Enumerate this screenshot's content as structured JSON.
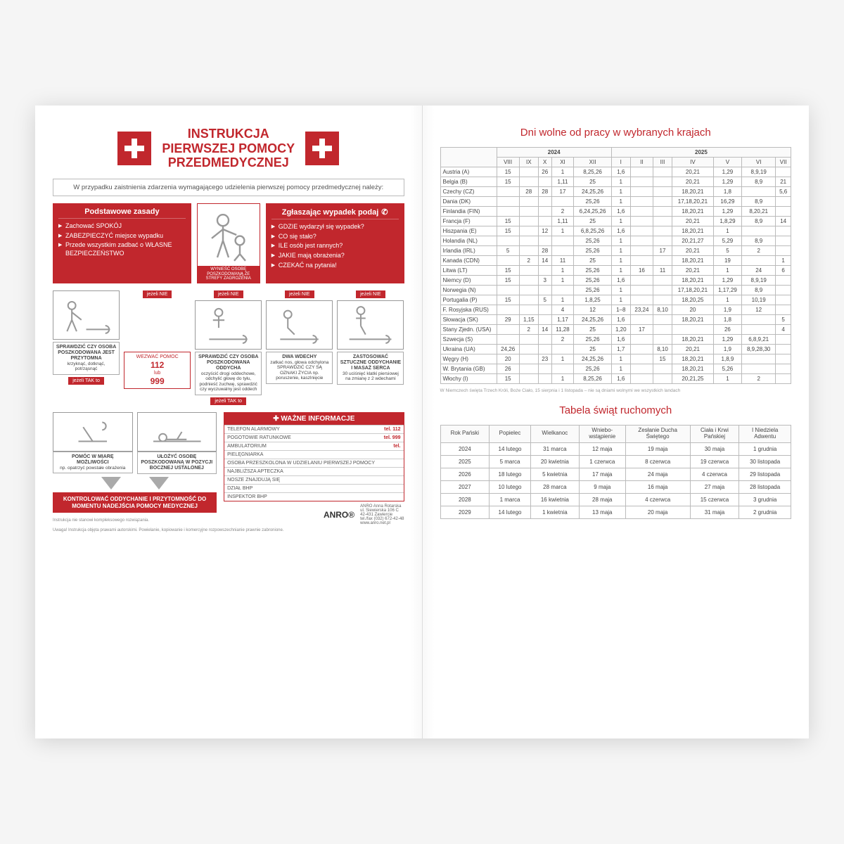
{
  "colors": {
    "red": "#c1272d",
    "grey": "#999999",
    "border": "#bbbbbb",
    "text": "#444444"
  },
  "left": {
    "title": {
      "l1": "INSTRUKCJA",
      "l2": "PIERWSZEJ POMOCY",
      "l3": "PRZEDMEDYCZNEJ"
    },
    "intro": "W przypadku zaistnienia zdarzenia wymagającego udzielenia pierwszej pomocy przedmedycznej należy:",
    "rules": {
      "hdr": "Podstawowe zasady",
      "items": [
        "Zachować SPOKÓJ",
        "ZABEZPIECZYĆ miejsce wypadku",
        "Przede wszystkim zadbać o WŁASNE BEZPIECZEŃSTWO"
      ]
    },
    "midcap": "WYNIEŚĆ OSOBĘ POSZKODOWANĄ ZE STREFY ZAGROŻENIA",
    "report": {
      "hdr": "Zgłaszając wypadek podaj",
      "items": [
        "GDZIE wydarzył się wypadek?",
        "CO się stało?",
        "ILE osób jest rannych?",
        "JAKIE mają obrażenia?",
        "CZEKAĆ na pytania!"
      ]
    },
    "flags": {
      "nie": "jeżeli NIE",
      "tak": "jeżeli TAK to"
    },
    "flow": {
      "c1": {
        "b": "SPRAWDZIĆ CZY OSOBA POSZKODOWANA JEST PRZYTOMNA",
        "t": "krzyknąć, dotknąć, potrząsnąć"
      },
      "c2": {
        "b": "SPRAWDZIĆ CZY OSOBA POSZKODOWANA ODDYCHA",
        "t": "oczyścić drogi oddechowe, odchylić głowę do tyłu, podnieść żuchwę, sprawdzić czy wyczuwalny jest oddech"
      },
      "c3": {
        "b": "DWA WDECHY",
        "t": "zatkać nos, głowa odchylona SPRAWDZIĆ CZY SĄ OZNAKI ŻYCIA np. poruszenie, kaszlnięcie"
      },
      "c4": {
        "b": "ZASTOSOWAĆ SZTUCZNE ODDYCHANIE I MASAŻ SERCA",
        "t": "30 uciśnięć klatki piersiowej na zmianę z 2 wdechami"
      }
    },
    "alarm": {
      "l1": "WEZWAĆ POMOC",
      "n1": "112",
      "mid": "lub",
      "n2": "999"
    },
    "bottom": {
      "b1": {
        "b": "POMÓC W MIARĘ MOŻLIWOŚCI",
        "t": "np. opatrzyć powstałe obrażenia"
      },
      "b2": {
        "b": "UŁOŻYĆ OSOBĘ POSZKODOWANĄ W POZYCJI BOCZNEJ USTALONEJ",
        "t": ""
      },
      "bar": "KONTROLOWAĆ ODDYCHANIE I PRZYTOMNOŚĆ DO MOMENTU NADEJŚCIA POMOCY MEDYCZNEJ"
    },
    "info": {
      "hdr": "✚  WAŻNE INFORMACJE",
      "rows": [
        [
          "TELEFON ALARMOWY",
          "tel. 112"
        ],
        [
          "POGOTOWIE RATUNKOWE",
          "tel. 999"
        ],
        [
          "AMBULATORIUM",
          "tel."
        ],
        [
          "PIELĘGNIARKA",
          ""
        ],
        [
          "OSOBA PRZESZKOLONA W UDZIELANIU PIERWSZEJ POMOCY",
          ""
        ],
        [
          "NAJBLIŻSZA APTECZKA",
          ""
        ],
        [
          "NOSZE ZNAJDUJĄ SIĘ",
          ""
        ],
        [
          "DZIAŁ BHP",
          ""
        ],
        [
          "INSPEKTOR BHP",
          ""
        ]
      ]
    },
    "anro": {
      "logo": "ANRO®",
      "addr": "ANRO Anna Rotarska\nul. Siewierska 106 C\n42-431 Zawiercie\ntel./fax (032) 672-42-48\nwww.anro.net.pl"
    },
    "foot1": "Instrukcja nie stanowi kompleksowego rozwiązania.",
    "foot2": "Uwaga! Instrukcja objęta prawami autorskimi. Powielanie, kopiowanie i komercyjne rozpowszechnianie prawnie zabronione."
  },
  "right": {
    "title1": "Dni wolne od pracy w wybranych krajach",
    "years": [
      "2024",
      "2025"
    ],
    "months": [
      "VIII",
      "IX",
      "X",
      "XI",
      "XII",
      "I",
      "II",
      "III",
      "IV",
      "V",
      "VI",
      "VII"
    ],
    "holidayRows": [
      [
        "Austria (A)",
        "15",
        "",
        "26",
        "1",
        "8,25,26",
        "1,6",
        "",
        "",
        "20,21",
        "1,29",
        "8,9,19",
        ""
      ],
      [
        "Belgia (B)",
        "15",
        "",
        "",
        "1,11",
        "25",
        "1",
        "",
        "",
        "20,21",
        "1,29",
        "8,9",
        "21"
      ],
      [
        "Czechy (CZ)",
        "",
        "28",
        "28",
        "17",
        "24,25,26",
        "1",
        "",
        "",
        "18,20,21",
        "1,8",
        "",
        "5,6"
      ],
      [
        "Dania (DK)",
        "",
        "",
        "",
        "",
        "25,26",
        "1",
        "",
        "",
        "17,18,20,21",
        "16,29",
        "8,9",
        ""
      ],
      [
        "Finlandia (FIN)",
        "",
        "",
        "",
        "2",
        "6,24,25,26",
        "1,6",
        "",
        "",
        "18,20,21",
        "1,29",
        "8,20,21",
        ""
      ],
      [
        "Francja (F)",
        "15",
        "",
        "",
        "1,11",
        "25",
        "1",
        "",
        "",
        "20,21",
        "1,8,29",
        "8,9",
        "14"
      ],
      [
        "Hiszpania (E)",
        "15",
        "",
        "12",
        "1",
        "6,8,25,26",
        "1,6",
        "",
        "",
        "18,20,21",
        "1",
        "",
        ""
      ],
      [
        "Holandia (NL)",
        "",
        "",
        "",
        "",
        "25,26",
        "1",
        "",
        "",
        "20,21,27",
        "5,29",
        "8,9",
        ""
      ],
      [
        "Irlandia (IRL)",
        "5",
        "",
        "28",
        "",
        "25,26",
        "1",
        "",
        "17",
        "20,21",
        "5",
        "2",
        ""
      ],
      [
        "Kanada (CDN)",
        "",
        "2",
        "14",
        "11",
        "25",
        "1",
        "",
        "",
        "18,20,21",
        "19",
        "",
        "1"
      ],
      [
        "Litwa (LT)",
        "15",
        "",
        "",
        "1",
        "25,26",
        "1",
        "16",
        "11",
        "20,21",
        "1",
        "24",
        "6"
      ],
      [
        "Niemcy (D)",
        "15",
        "",
        "3",
        "1",
        "25,26",
        "1,6",
        "",
        "",
        "18,20,21",
        "1,29",
        "8,9,19",
        ""
      ],
      [
        "Norwegia (N)",
        "",
        "",
        "",
        "",
        "25,26",
        "1",
        "",
        "",
        "17,18,20,21",
        "1,17,29",
        "8,9",
        ""
      ],
      [
        "Portugalia (P)",
        "15",
        "",
        "5",
        "1",
        "1,8,25",
        "1",
        "",
        "",
        "18,20,25",
        "1",
        "10,19",
        ""
      ],
      [
        "F. Rosyjska (RUS)",
        "",
        "",
        "",
        "4",
        "12",
        "1–8",
        "23,24",
        "8,10",
        "20",
        "1,9",
        "12",
        ""
      ],
      [
        "Słowacja (SK)",
        "29",
        "1,15",
        "",
        "1,17",
        "24,25,26",
        "1,6",
        "",
        "",
        "18,20,21",
        "1,8",
        "",
        "5"
      ],
      [
        "Stany Zjedn. (USA)",
        "",
        "2",
        "14",
        "11,28",
        "25",
        "1,20",
        "17",
        "",
        "",
        "26",
        "",
        "4"
      ],
      [
        "Szwecja (S)",
        "",
        "",
        "",
        "2",
        "25,26",
        "1,6",
        "",
        "",
        "18,20,21",
        "1,29",
        "6,8,9,21",
        ""
      ],
      [
        "Ukraina (UA)",
        "24,26",
        "",
        "",
        "",
        "25",
        "1,7",
        "",
        "8,10",
        "20,21",
        "1,9",
        "8,9,28,30",
        ""
      ],
      [
        "Węgry (H)",
        "20",
        "",
        "23",
        "1",
        "24,25,26",
        "1",
        "",
        "15",
        "18,20,21",
        "1,8,9",
        "",
        ""
      ],
      [
        "W. Brytania (GB)",
        "26",
        "",
        "",
        "",
        "25,26",
        "1",
        "",
        "",
        "18,20,21",
        "5,26",
        "",
        ""
      ],
      [
        "Włochy (I)",
        "15",
        "",
        "",
        "1",
        "8,25,26",
        "1,6",
        "",
        "",
        "20,21,25",
        "1",
        "2",
        ""
      ]
    ],
    "note": "W Niemczech święta Trzech Króli, Boże Ciało, 15 sierpnia i 1 listopada – nie są dniami wolnymi we wszystkich landach",
    "title2": "Tabela świąt ruchomych",
    "movableCols": [
      "Rok Pański",
      "Popielec",
      "Wielkanoc",
      "Wniebo-\nwstąpienie",
      "Zesłanie Ducha\nŚwiętego",
      "Ciała i Krwi\nPańskiej",
      "I Niedziela\nAdwentu"
    ],
    "movableRows": [
      [
        "2024",
        "14 lutego",
        "31 marca",
        "12 maja",
        "19 maja",
        "30 maja",
        "1 grudnia"
      ],
      [
        "2025",
        "5 marca",
        "20 kwietnia",
        "1 czerwca",
        "8 czerwca",
        "19 czerwca",
        "30 listopada"
      ],
      [
        "2026",
        "18 lutego",
        "5 kwietnia",
        "17 maja",
        "24 maja",
        "4 czerwca",
        "29 listopada"
      ],
      [
        "2027",
        "10 lutego",
        "28 marca",
        "9 maja",
        "16 maja",
        "27 maja",
        "28 listopada"
      ],
      [
        "2028",
        "1 marca",
        "16 kwietnia",
        "28 maja",
        "4 czerwca",
        "15 czerwca",
        "3 grudnia"
      ],
      [
        "2029",
        "14 lutego",
        "1 kwietnia",
        "13 maja",
        "20 maja",
        "31 maja",
        "2 grudnia"
      ]
    ]
  }
}
